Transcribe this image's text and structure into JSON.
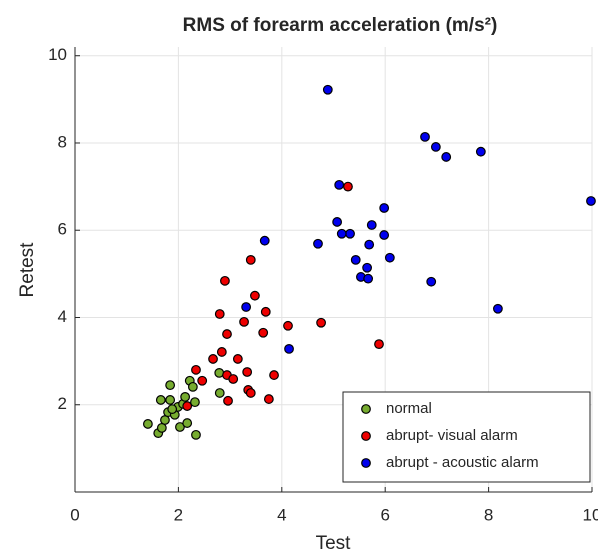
{
  "chart_data": {
    "type": "scatter",
    "title": "RMS of forearm acceleration (m/s²)",
    "x_label": "Test",
    "y_label": "Retest",
    "xlim": [
      0,
      10
    ],
    "ylim": [
      0,
      10.2
    ],
    "xticks": [
      0,
      2,
      4,
      6,
      8,
      10
    ],
    "yticks": [
      2,
      4,
      6,
      8,
      10
    ],
    "grid": true,
    "legend": "lower right",
    "series": [
      {
        "name": "normal",
        "color": "#77ac30",
        "x": [
          1.41,
          1.61,
          1.68,
          1.66,
          1.84,
          1.84,
          1.74,
          1.8,
          1.93,
          1.99,
          2.03,
          2.09,
          2.13,
          2.22,
          2.28,
          2.34,
          2.32,
          2.79,
          2.8,
          2.17,
          1.88
        ],
        "values": [
          1.56,
          1.35,
          1.47,
          2.11,
          2.11,
          2.45,
          1.65,
          1.83,
          1.77,
          1.95,
          1.49,
          2.02,
          2.18,
          2.55,
          2.41,
          1.31,
          2.06,
          2.73,
          2.27,
          1.58,
          1.9
        ]
      },
      {
        "name": "abrupt- visual alarm",
        "color": "#ee0000",
        "x": [
          5.28,
          2.9,
          3.4,
          3.48,
          2.8,
          3.27,
          3.69,
          3.64,
          4.12,
          4.76,
          2.94,
          5.88,
          2.67,
          2.84,
          3.15,
          2.34,
          2.94,
          3.06,
          2.46,
          3.33,
          3.85,
          3.35,
          3.4,
          2.96,
          3.75,
          2.17
        ],
        "values": [
          7.0,
          4.84,
          5.32,
          4.5,
          4.08,
          3.9,
          4.13,
          3.65,
          3.81,
          3.88,
          3.62,
          3.39,
          3.05,
          3.21,
          3.05,
          2.8,
          2.68,
          2.59,
          2.55,
          2.75,
          2.68,
          2.34,
          2.27,
          2.09,
          2.13,
          1.97
        ]
      },
      {
        "name": "abrupt - acoustic alarm",
        "color": "#0000ee",
        "x": [
          4.89,
          6.77,
          6.98,
          7.18,
          7.85,
          9.98,
          5.11,
          5.07,
          5.32,
          5.16,
          5.74,
          5.98,
          5.98,
          3.67,
          4.7,
          5.69,
          6.09,
          5.43,
          5.65,
          5.53,
          5.67,
          6.89,
          3.31,
          8.18,
          4.14
        ],
        "values": [
          9.22,
          8.14,
          7.91,
          7.68,
          7.8,
          6.67,
          7.04,
          6.19,
          5.92,
          5.92,
          6.12,
          6.51,
          5.89,
          5.76,
          5.69,
          5.67,
          5.37,
          5.32,
          5.14,
          4.93,
          4.89,
          4.82,
          4.24,
          4.2,
          3.28
        ]
      }
    ]
  }
}
